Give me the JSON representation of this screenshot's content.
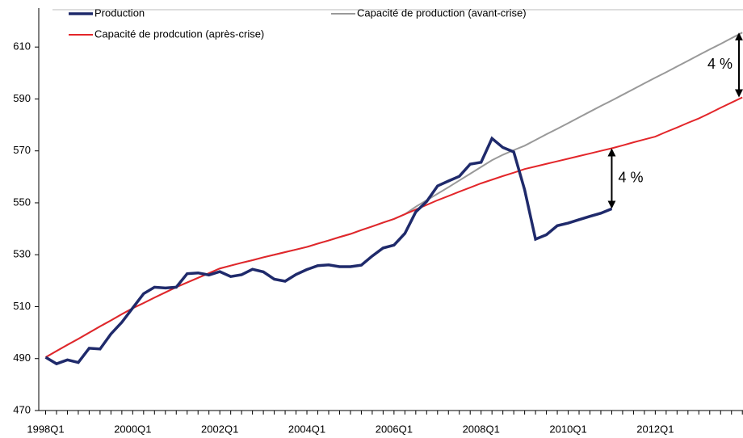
{
  "chart_data": {
    "type": "line",
    "categories": [
      "1998Q1",
      null,
      null,
      null,
      null,
      null,
      null,
      null,
      "2000Q1",
      null,
      null,
      null,
      null,
      null,
      null,
      null,
      "2002Q1",
      null,
      null,
      null,
      null,
      null,
      null,
      null,
      "2004Q1",
      null,
      null,
      null,
      null,
      null,
      null,
      null,
      "2006Q1",
      null,
      null,
      null,
      null,
      null,
      null,
      null,
      "2008Q1",
      null,
      null,
      null,
      null,
      null,
      null,
      null,
      "2010Q1",
      null,
      null,
      null,
      null,
      null,
      null,
      null,
      "2012Q1",
      null,
      null,
      null,
      null,
      null,
      null,
      null,
      null
    ],
    "series": [
      {
        "name": "Production",
        "color": "#1f2a6b",
        "values": [
          490.5,
          488,
          489.5,
          488.5,
          494,
          493.7,
          499.5,
          504,
          509.5,
          515,
          517.5,
          517.2,
          517.5,
          522.7,
          523,
          522.2,
          523.5,
          521.6,
          522.3,
          524.4,
          523.4,
          520.6,
          519.8,
          522.4,
          524.3,
          525.8,
          526.1,
          525.4,
          525.4,
          526,
          529.5,
          532.6,
          533.7,
          538.2,
          546.5,
          550.5,
          556.5,
          558.4,
          560.2,
          564.9,
          565.6,
          574.8,
          571.3,
          569.6,
          555,
          536,
          537.7,
          541.2,
          542.2,
          543.5,
          544.8,
          546,
          547.7,
          null,
          null,
          null,
          null,
          null,
          null,
          null,
          null,
          null,
          null,
          null,
          null
        ]
      },
      {
        "name": "Capacité de production (avant-crise)",
        "color": "#999999",
        "values": [
          490.5,
          492.9,
          495.3,
          497.6,
          500,
          502.4,
          504.7,
          507.1,
          509.4,
          511.4,
          513.5,
          515.5,
          517.5,
          519.3,
          521.1,
          522.9,
          524.7,
          525.8,
          526.9,
          527.9,
          529,
          530,
          531,
          532,
          533,
          534.3,
          535.5,
          536.8,
          538,
          539.5,
          540.9,
          542.4,
          543.8,
          545.6,
          548.5,
          551,
          553.5,
          556,
          558.6,
          561.2,
          563.8,
          566.4,
          568.5,
          570.3,
          572,
          574.2,
          576.4,
          578.5,
          580.7,
          582.9,
          585.1,
          587.3,
          589.4,
          591.6,
          593.8,
          596,
          598.2,
          600.3,
          602.5,
          604.7,
          606.9,
          609.1,
          611.2,
          613.4,
          615.6
        ]
      },
      {
        "name": "Capacité de prodcution (après-crise)",
        "color": "#e3262a",
        "values": [
          490.5,
          492.9,
          495.3,
          497.6,
          500,
          502.4,
          504.7,
          507.1,
          509.4,
          511.4,
          513.5,
          515.5,
          517.5,
          519.3,
          521.1,
          522.9,
          524.7,
          525.8,
          526.9,
          527.9,
          529,
          530,
          531,
          532,
          533,
          534.3,
          535.5,
          536.8,
          538,
          539.5,
          540.9,
          542.4,
          543.8,
          545.6,
          547.4,
          549.2,
          551,
          552.6,
          554.3,
          555.9,
          557.5,
          558.9,
          560.3,
          561.6,
          563,
          564,
          565,
          566,
          567,
          568,
          569,
          570,
          571,
          572.1,
          573.3,
          574.4,
          575.5,
          577.3,
          579,
          580.8,
          582.5,
          584.5,
          586.6,
          588.6,
          590.6
        ]
      }
    ],
    "ylim": [
      470,
      625
    ],
    "yticks": [
      470,
      490,
      510,
      530,
      550,
      570,
      590,
      610
    ],
    "annotations": [
      "4 %",
      "4 %"
    ]
  }
}
